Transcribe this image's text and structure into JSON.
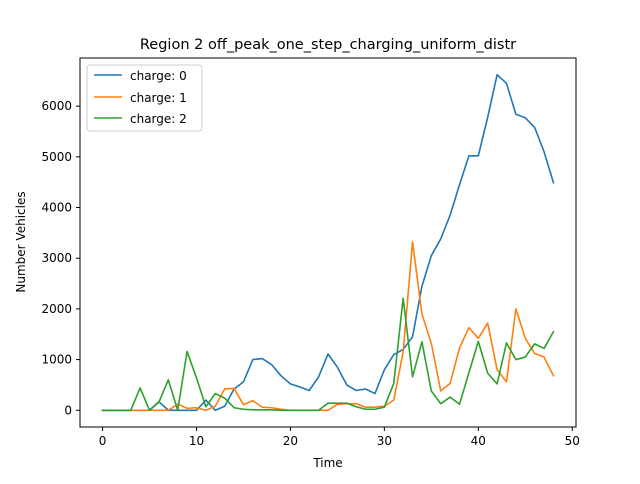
{
  "chart_data": {
    "type": "line",
    "title": "Region 2 off_peak_one_step_charging_uniform_distr",
    "xlabel": "Time",
    "ylabel": "Number Vehicles",
    "xlim": [
      -2.4,
      50.4
    ],
    "ylim": [
      -330,
      6950
    ],
    "xticks": [
      0,
      10,
      20,
      30,
      40,
      50
    ],
    "yticks": [
      0,
      1000,
      2000,
      3000,
      4000,
      5000,
      6000
    ],
    "grid": false,
    "legend_position": "upper left",
    "x": [
      0,
      1,
      2,
      3,
      4,
      5,
      6,
      7,
      8,
      9,
      10,
      11,
      12,
      13,
      14,
      15,
      16,
      17,
      18,
      19,
      20,
      21,
      22,
      23,
      24,
      25,
      26,
      27,
      28,
      29,
      30,
      31,
      32,
      33,
      34,
      35,
      36,
      37,
      38,
      39,
      40,
      41,
      42,
      43,
      44,
      45,
      46,
      47,
      48
    ],
    "series": [
      {
        "name": "charge: 0",
        "color": "#1f77b4",
        "values": [
          0,
          0,
          0,
          0,
          0,
          0,
          170,
          0,
          0,
          0,
          0,
          200,
          0,
          80,
          420,
          560,
          1000,
          1020,
          900,
          680,
          520,
          460,
          390,
          660,
          1110,
          850,
          500,
          390,
          420,
          330,
          800,
          1100,
          1200,
          1450,
          2450,
          3050,
          3380,
          3850,
          4450,
          5020,
          5020,
          5780,
          6620,
          6450,
          5840,
          5770,
          5580,
          5100,
          4490
        ]
      },
      {
        "name": "charge: 1",
        "color": "#ff7f0e",
        "values": [
          0,
          0,
          0,
          0,
          0,
          0,
          0,
          0,
          120,
          40,
          50,
          0,
          80,
          420,
          430,
          110,
          190,
          60,
          50,
          20,
          0,
          0,
          0,
          0,
          0,
          120,
          130,
          130,
          60,
          60,
          80,
          200,
          1150,
          3320,
          1900,
          1320,
          380,
          530,
          1230,
          1630,
          1420,
          1720,
          800,
          560,
          2000,
          1420,
          1120,
          1050,
          680
        ]
      },
      {
        "name": "charge: 2",
        "color": "#2ca02c",
        "values": [
          0,
          0,
          0,
          0,
          440,
          0,
          160,
          600,
          0,
          1160,
          640,
          70,
          330,
          240,
          50,
          20,
          10,
          10,
          10,
          0,
          0,
          0,
          0,
          0,
          140,
          140,
          140,
          70,
          20,
          20,
          60,
          530,
          2210,
          660,
          1350,
          380,
          130,
          260,
          120,
          740,
          1360,
          730,
          520,
          1330,
          1000,
          1050,
          1310,
          1220,
          1550
        ]
      }
    ]
  }
}
